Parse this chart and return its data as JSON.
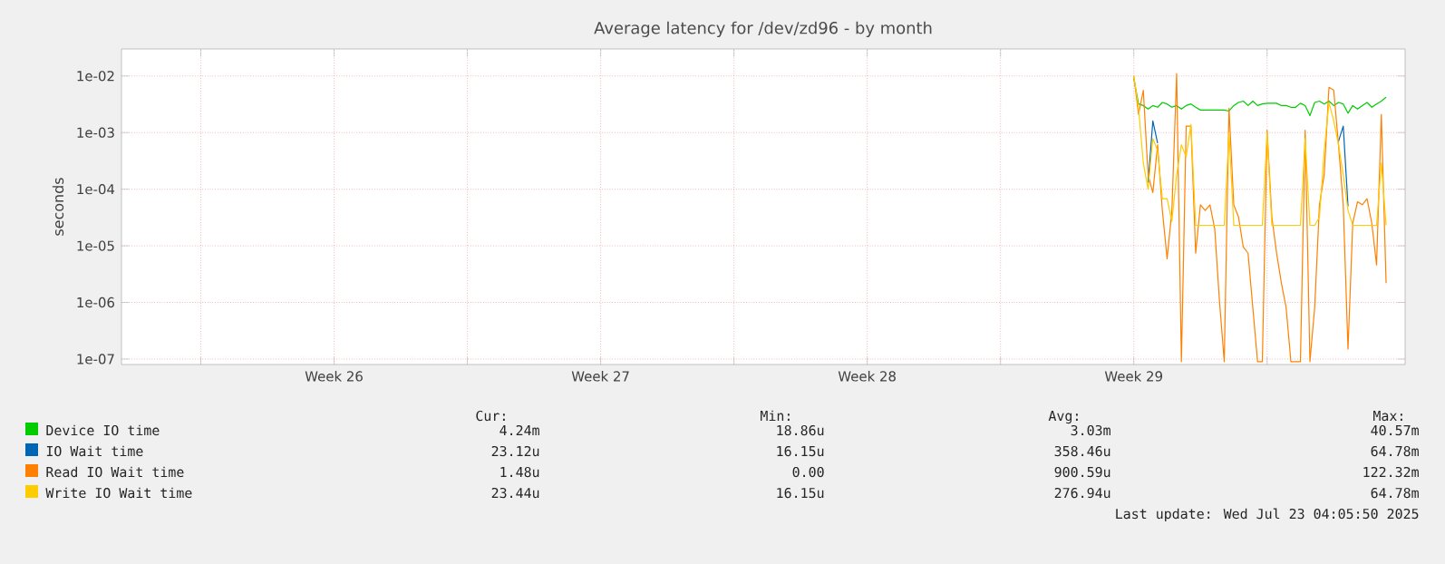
{
  "chart_data": {
    "type": "line",
    "title": "Average latency for /dev/zd96 - by month",
    "ylabel": "seconds",
    "log": "y",
    "grid": true,
    "legend": "bottom",
    "xlim": [
      "2025-06-19T22:00",
      "2025-07-23T15:00"
    ],
    "xticks": [
      {
        "value": "2025-06-22T00:00",
        "label": null
      },
      {
        "value": "2025-06-25T12:00",
        "label": "Week 26"
      },
      {
        "value": "2025-06-29T00:00",
        "label": null
      },
      {
        "value": "2025-07-02T12:00",
        "label": "Week 27"
      },
      {
        "value": "2025-07-06T00:00",
        "label": null
      },
      {
        "value": "2025-07-09T12:00",
        "label": "Week 28"
      },
      {
        "value": "2025-07-13T00:00",
        "label": null
      },
      {
        "value": "2025-07-16T12:00",
        "label": "Week 29"
      },
      {
        "value": "2025-07-20T00:00",
        "label": null
      }
    ],
    "ylim": [
      8e-08,
      0.03
    ],
    "yticks": [
      {
        "value": 1e-07,
        "label": "1e-07"
      },
      {
        "value": 1e-06,
        "label": "1e-06"
      },
      {
        "value": 1e-05,
        "label": "1e-05"
      },
      {
        "value": 0.0001,
        "label": "1e-04"
      },
      {
        "value": 0.001,
        "label": "1e-03"
      },
      {
        "value": 0.01,
        "label": "1e-02"
      }
    ],
    "x": [
      "2025-07-16T12:00",
      "2025-07-16T15:00",
      "2025-07-16T18:00",
      "2025-07-16T21:00",
      "2025-07-17T00:00",
      "2025-07-17T03:00",
      "2025-07-17T06:00",
      "2025-07-17T09:00",
      "2025-07-17T12:00",
      "2025-07-17T15:00",
      "2025-07-17T18:00",
      "2025-07-17T21:00",
      "2025-07-18T00:00",
      "2025-07-18T03:00",
      "2025-07-18T06:00",
      "2025-07-18T09:00",
      "2025-07-18T12:00",
      "2025-07-18T15:00",
      "2025-07-18T18:00",
      "2025-07-18T21:00",
      "2025-07-19T00:00",
      "2025-07-19T03:00",
      "2025-07-19T06:00",
      "2025-07-19T09:00",
      "2025-07-19T12:00",
      "2025-07-19T15:00",
      "2025-07-19T18:00",
      "2025-07-19T21:00",
      "2025-07-20T00:00",
      "2025-07-20T03:00",
      "2025-07-20T06:00",
      "2025-07-20T09:00",
      "2025-07-20T12:00",
      "2025-07-20T15:00",
      "2025-07-20T18:00",
      "2025-07-20T21:00",
      "2025-07-21T00:00",
      "2025-07-21T03:00",
      "2025-07-21T06:00",
      "2025-07-21T09:00",
      "2025-07-21T12:00",
      "2025-07-21T15:00",
      "2025-07-21T18:00",
      "2025-07-21T21:00",
      "2025-07-22T00:00",
      "2025-07-22T03:00",
      "2025-07-22T06:00",
      "2025-07-22T09:00",
      "2025-07-22T12:00",
      "2025-07-22T15:00",
      "2025-07-22T18:00",
      "2025-07-22T21:00",
      "2025-07-23T00:00",
      "2025-07-23T03:00"
    ],
    "series": [
      {
        "name": "Device IO time",
        "color": "#00cc00",
        "values": [
          0.009,
          0.0032,
          0.003,
          0.0026,
          0.003,
          0.0028,
          0.0034,
          0.0032,
          0.0028,
          0.003,
          0.0026,
          0.003,
          0.0032,
          0.0028,
          0.0025,
          0.0025,
          0.0025,
          0.0025,
          0.0025,
          0.0025,
          0.0024,
          0.003,
          0.0034,
          0.0036,
          0.003,
          0.0036,
          0.003,
          0.0032,
          0.0033,
          0.0033,
          0.0033,
          0.003,
          0.003,
          0.0028,
          0.0028,
          0.0033,
          0.003,
          0.002,
          0.0034,
          0.0036,
          0.0032,
          0.0036,
          0.003,
          0.0034,
          0.0032,
          0.0022,
          0.003,
          0.0026,
          0.003,
          0.0034,
          0.0028,
          0.0032,
          0.0036,
          0.0042
        ]
      },
      {
        "name": "IO Wait time",
        "color": "#0066b3",
        "values": [
          null,
          null,
          null,
          0.00013,
          0.0016,
          0.00065,
          null,
          null,
          null,
          null,
          null,
          null,
          null,
          null,
          null,
          null,
          null,
          null,
          null,
          null,
          null,
          null,
          null,
          null,
          null,
          null,
          null,
          null,
          null,
          null,
          null,
          null,
          null,
          null,
          null,
          null,
          null,
          null,
          null,
          null,
          null,
          null,
          null,
          0.0007,
          0.0013,
          5e-05,
          null,
          null,
          null,
          null,
          null,
          null,
          null,
          null
        ]
      },
      {
        "name": "Read IO Wait time",
        "color": "#ff8000",
        "values": [
          0.01,
          0.0021,
          0.0056,
          0.00018,
          8.7e-05,
          0.00061,
          4.2e-05,
          5.9e-06,
          4.2e-05,
          0.011,
          9e-08,
          0.0013,
          0.0013,
          7.4e-06,
          5.3e-05,
          4.2e-05,
          5.3e-05,
          2e-05,
          1.05e-06,
          9e-08,
          0.0027,
          5.3e-05,
          3.2e-05,
          9.5e-06,
          7.4e-06,
          8.1e-07,
          9e-08,
          9e-08,
          0.0011,
          3.2e-05,
          7.4e-06,
          2.2e-06,
          8.1e-07,
          9e-08,
          9e-08,
          9e-08,
          0.0011,
          9e-08,
          8.1e-07,
          5.3e-05,
          0.00018,
          0.0063,
          0.0056,
          0.00061,
          5.3e-05,
          1.5e-07,
          2.5e-05,
          6e-05,
          5.3e-05,
          6.8e-05,
          2.5e-05,
          4.6e-06,
          0.0021,
          2.2e-06
        ]
      },
      {
        "name": "Write IO Wait time",
        "color": "#ffcc00",
        "values": [
          0.01,
          0.0027,
          0.00029,
          0.0001,
          0.00078,
          0.00048,
          6.8e-05,
          6.8e-05,
          2.7e-05,
          0.00018,
          0.00061,
          0.00037,
          0.0014,
          2.3e-05,
          2.3e-05,
          2.3e-05,
          2.3e-05,
          2.3e-05,
          2.3e-05,
          2.3e-05,
          0.001,
          2.3e-05,
          2.3e-05,
          2.3e-05,
          2.3e-05,
          2.3e-05,
          2.3e-05,
          2.3e-05,
          0.001,
          2.3e-05,
          2.3e-05,
          2.3e-05,
          2.3e-05,
          2.3e-05,
          2.3e-05,
          2.3e-05,
          0.00078,
          2.3e-05,
          2.3e-05,
          3.2e-05,
          0.00048,
          0.0034,
          0.0016,
          0.00061,
          0.00018,
          4.2e-05,
          2.3e-05,
          2.3e-05,
          2.3e-05,
          2.3e-05,
          2.3e-05,
          2.3e-05,
          0.00029,
          2.3e-05
        ]
      }
    ],
    "annotations": [
      "Cur:",
      "Min:",
      "Avg:",
      "Max:",
      "4.24m",
      "18.86u",
      "3.03m",
      "40.57m",
      "23.12u",
      "16.15u",
      "358.46u",
      "64.78m",
      "1.48u",
      "0.00",
      "900.59u",
      "122.32m",
      "23.44u",
      "16.15u",
      "276.94u",
      "64.78m",
      "Last update: Wed Jul 23 04:05:50 2025"
    ]
  }
}
